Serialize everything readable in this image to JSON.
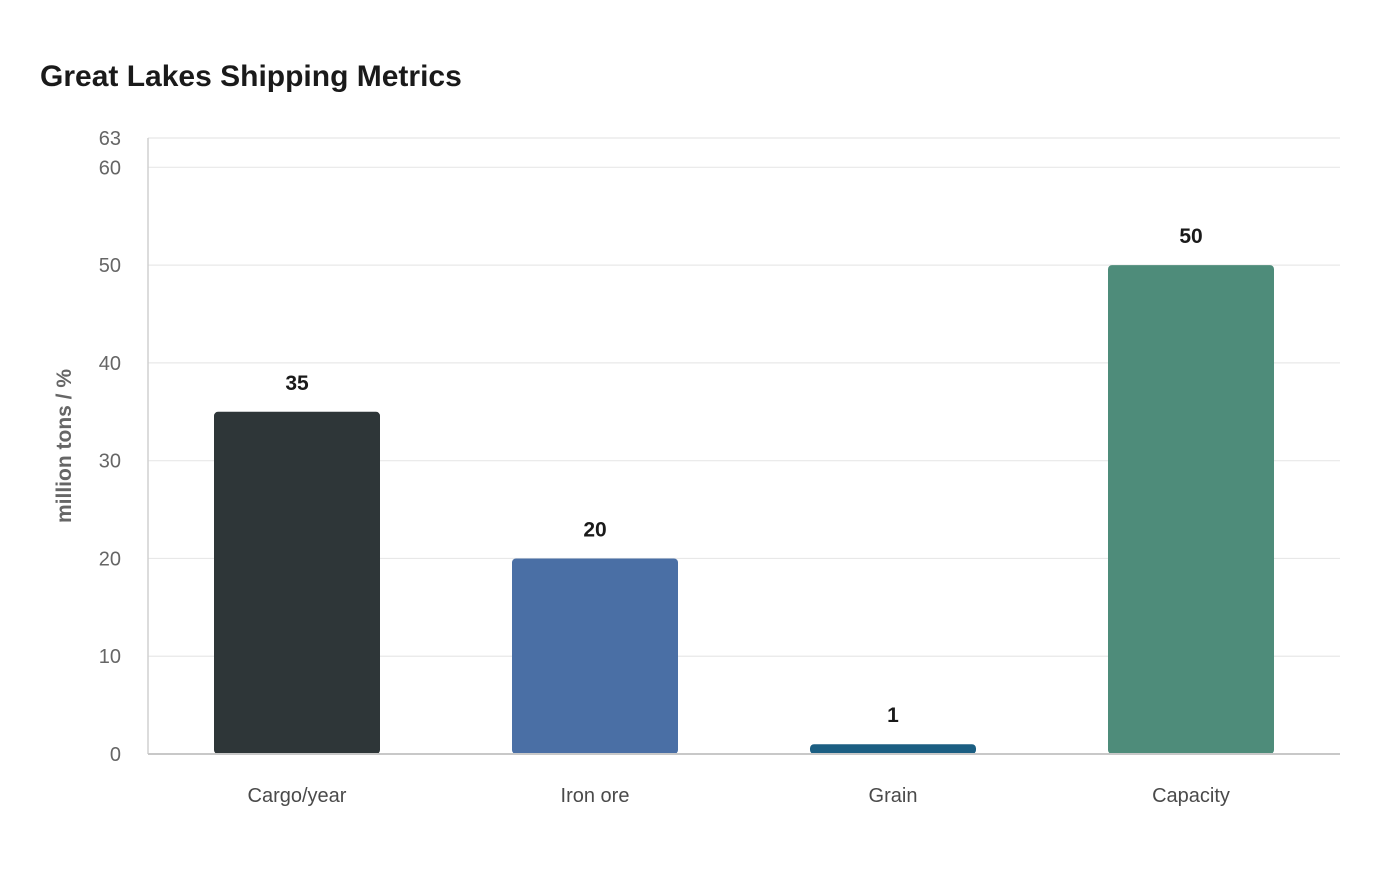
{
  "chart_data": {
    "type": "bar",
    "title": "Great Lakes Shipping Metrics",
    "xlabel": "",
    "ylabel": "million tons / %",
    "categories": [
      "Cargo/year",
      "Iron ore",
      "Grain",
      "Capacity"
    ],
    "values": [
      35,
      20,
      1,
      50
    ],
    "value_labels": [
      "35",
      "20",
      "1",
      "50"
    ],
    "colors": [
      "#2e3638",
      "#4a6fa5",
      "#1b5e82",
      "#4e8c7a"
    ],
    "ylim": [
      0,
      63
    ],
    "yticks": [
      0,
      10,
      20,
      30,
      40,
      50,
      60,
      63
    ],
    "grid": true,
    "legend": "none"
  }
}
